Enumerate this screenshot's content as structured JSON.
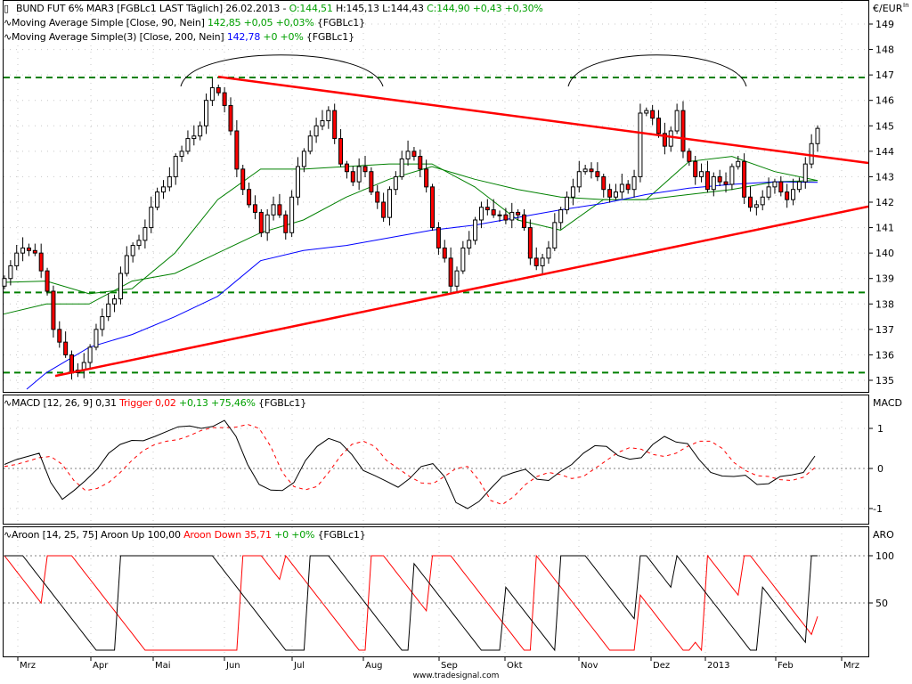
{
  "header": {
    "instrument": "BUND FUT 6% MAR3 [FGBLc1 LAST Täglich] 26.02.2013 -",
    "open": "O:144,51",
    "high": "H:145,13",
    "low": "L:144,43",
    "close": "C:144,90 +0,43 +0,30%"
  },
  "ma1": {
    "label": "Moving Average Simple [Close, 90, Nein]",
    "value": "142,85 +0,05 +0,03%",
    "symbol": "{FGBLc1}"
  },
  "ma2": {
    "label": "Moving Average Simple(3) [Close, 200, Nein]",
    "value": "142,78",
    "change": "+0 +0%",
    "symbol": "{FGBLc1}"
  },
  "macd_legend": {
    "label": "MACD [12, 26, 9] 0,31",
    "trigger": "Trigger 0,02",
    "change": "+0,13 +75,46%",
    "symbol": "{FGBLc1}"
  },
  "aroon_legend": {
    "label": "Aroon [14, 25, 75] Aroon Up 100,00",
    "down": "Aroon Down 35,71",
    "change": "+0 +0%",
    "symbol": "{FGBLc1}"
  },
  "axis": {
    "unit": "€/EUR",
    "corner": "In",
    "price_ticks": [
      "149",
      "148",
      "147",
      "146",
      "145",
      "144",
      "143",
      "142",
      "141",
      "140",
      "139",
      "138",
      "137",
      "136",
      "135"
    ],
    "macd_title": "MACD",
    "macd_ticks": [
      "1",
      "0",
      "-1"
    ],
    "aroon_title": "ARO",
    "aroon_ticks": [
      "100",
      "50"
    ],
    "months": [
      "Mrz",
      "Apr",
      "Mai",
      "Jun",
      "Jul",
      "Aug",
      "Sep",
      "Okt",
      "Nov",
      "Dez",
      "2013",
      "Feb",
      "Mrz"
    ]
  },
  "footer": "www.tradesignal.com",
  "colors": {
    "up_candle": "#ffffff",
    "down_candle": "#ff0000",
    "ma90": "#008000",
    "ma_fast": "#008000",
    "ma200": "#0000ff",
    "trendline": "#ff0000",
    "level": "#008000",
    "macd": "#000000",
    "trigger": "#ff0000",
    "aroon_up": "#000000",
    "aroon_down": "#ff0000"
  },
  "chart_data": [
    {
      "type": "candlestick",
      "ylim": [
        134.5,
        149.5
      ],
      "closes": [
        139.0,
        139.5,
        140.0,
        140.2,
        140.1,
        140.0,
        139.3,
        138.5,
        137.0,
        136.5,
        136.0,
        135.3,
        135.4,
        135.7,
        136.3,
        137.0,
        137.5,
        138.0,
        138.2,
        139.2,
        139.9,
        140.3,
        140.5,
        141.0,
        141.8,
        142.4,
        142.6,
        143.0,
        143.8,
        144.0,
        144.5,
        144.6,
        145.0,
        146.0,
        146.5,
        146.3,
        145.8,
        144.8,
        143.3,
        142.5,
        141.9,
        141.6,
        140.8,
        141.5,
        141.9,
        141.5,
        140.8,
        142.2,
        143.4,
        144.0,
        144.6,
        145.0,
        145.2,
        145.6,
        144.5,
        143.5,
        143.2,
        142.8,
        143.4,
        143.2,
        142.4,
        142.0,
        141.4,
        142.5,
        143.0,
        143.7,
        144.0,
        143.8,
        143.3,
        142.6,
        141.0,
        140.2,
        139.8,
        138.7,
        139.3,
        140.2,
        140.5,
        141.3,
        141.8,
        141.7,
        141.5,
        141.5,
        141.3,
        141.6,
        141.5,
        141.0,
        139.8,
        139.5,
        139.8,
        140.2,
        141.2,
        141.7,
        142.2,
        142.6,
        143.2,
        143.3,
        143.2,
        143.0,
        142.5,
        142.2,
        142.4,
        142.7,
        142.5,
        143.0,
        145.5,
        145.6,
        145.3,
        144.7,
        144.2,
        144.8,
        145.6,
        144.0,
        143.6,
        143.0,
        143.2,
        142.5,
        143.0,
        142.8,
        142.7,
        143.4,
        143.6,
        142.2,
        141.8,
        141.9,
        142.2,
        142.6,
        142.8,
        142.4,
        142.1,
        142.5,
        142.8,
        143.5,
        144.3,
        144.9
      ],
      "ma90": [
        137.6,
        138.0,
        138.0,
        138.9,
        139.2,
        140.0,
        140.8,
        141.3,
        142.2,
        142.9,
        143.4,
        142.9,
        142.5,
        142.2,
        142.1,
        142.1,
        142.3,
        142.5,
        142.8,
        142.85
      ],
      "ma_fast": [
        138.85,
        138.9,
        138.4,
        138.6,
        140.0,
        142.1,
        143.3,
        143.3,
        143.4,
        143.5,
        143.5,
        142.6,
        141.3,
        140.9,
        142.1,
        142.1,
        143.6,
        143.8,
        143.2,
        142.85
      ],
      "ma200": [
        null,
        135.3,
        136.3,
        136.8,
        137.5,
        138.3,
        139.7,
        140.1,
        140.3,
        140.6,
        140.9,
        141.1,
        141.4,
        141.7,
        141.95,
        142.3,
        142.55,
        142.7,
        142.8,
        142.78
      ],
      "levels": [
        146.9,
        138.45,
        135.3
      ],
      "trendlines": [
        {
          "name": "resistance",
          "from": 146.93,
          "to": 143.54
        },
        {
          "name": "support",
          "from": 135.17,
          "to": 141.83
        }
      ]
    },
    {
      "type": "line",
      "name": "MACD",
      "ylim": [
        -1.2,
        1.3
      ],
      "macd": [
        0.1,
        0.22,
        0.3,
        0.38,
        -0.35,
        -0.77,
        -0.55,
        -0.3,
        -0.02,
        0.38,
        0.6,
        0.7,
        0.69,
        0.8,
        0.92,
        1.04,
        1.06,
        1.0,
        1.05,
        1.2,
        0.8,
        0.1,
        -0.4,
        -0.54,
        -0.55,
        -0.35,
        0.2,
        0.55,
        0.75,
        0.65,
        0.35,
        -0.05,
        -0.18,
        -0.32,
        -0.47,
        -0.25,
        0.05,
        0.12,
        -0.2,
        -0.85,
        -1.0,
        -0.82,
        -0.5,
        -0.2,
        -0.1,
        -0.02,
        -0.27,
        -0.3,
        -0.08,
        0.1,
        0.38,
        0.57,
        0.55,
        0.32,
        0.23,
        0.27,
        0.6,
        0.8,
        0.66,
        0.62,
        0.22,
        -0.1,
        -0.19,
        -0.2,
        -0.17,
        -0.4,
        -0.38,
        -0.2,
        -0.16,
        -0.1,
        0.31
      ],
      "trigger": [
        0.05,
        0.1,
        0.18,
        0.27,
        0.3,
        0.1,
        -0.3,
        -0.55,
        -0.5,
        -0.35,
        -0.1,
        0.2,
        0.45,
        0.6,
        0.68,
        0.72,
        0.82,
        0.95,
        1.02,
        1.02,
        1.03,
        1.1,
        1.0,
        0.55,
        -0.1,
        -0.45,
        -0.53,
        -0.45,
        -0.1,
        0.3,
        0.6,
        0.68,
        0.55,
        0.2,
        0.0,
        -0.2,
        -0.36,
        -0.38,
        -0.2,
        0.0,
        0.05,
        -0.3,
        -0.8,
        -0.9,
        -0.7,
        -0.4,
        -0.2,
        -0.1,
        -0.15,
        -0.25,
        -0.2,
        0.0,
        0.2,
        0.4,
        0.52,
        0.48,
        0.35,
        0.3,
        0.38,
        0.55,
        0.68,
        0.68,
        0.5,
        0.15,
        -0.05,
        -0.18,
        -0.2,
        -0.28,
        -0.3,
        -0.22,
        0.02
      ]
    },
    {
      "type": "line",
      "name": "Aroon",
      "ylim": [
        0,
        100
      ],
      "period": 25,
      "up_last": 100.0,
      "down_last": 35.71
    }
  ]
}
